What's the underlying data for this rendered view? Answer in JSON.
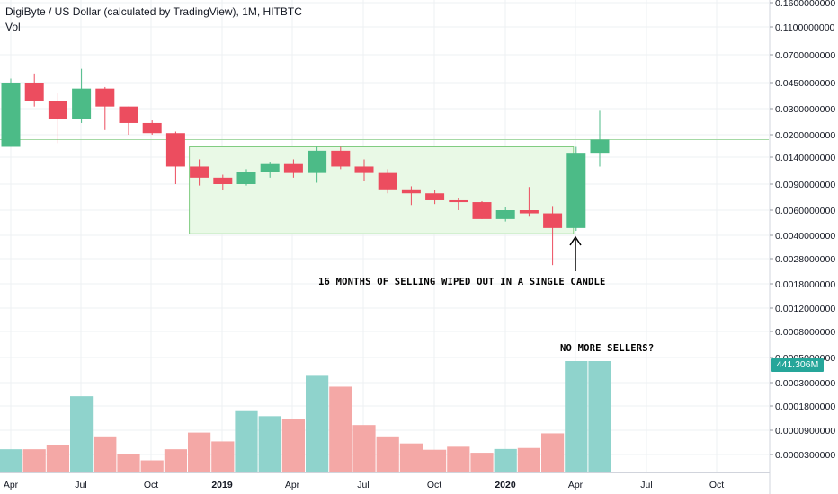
{
  "header": {
    "title": "DigiByte / US Dollar (calculated by TradingView), 1M, HITBTC",
    "volume_label": "Vol"
  },
  "annotations": {
    "main_text": "16 MONTHS OF SELLING WIPED OUT IN A SINGLE CANDLE",
    "volume_text": "NO MORE SELLERS?"
  },
  "volume_tag": "441.306M",
  "colors": {
    "up": "#4cbb87",
    "down": "#ec4d5f",
    "volume_up": "#8fd3cc",
    "volume_down": "#f4a8a6",
    "box_fill": "#e9f9e6",
    "box_stroke": "#7fcc7f",
    "level_line": "#a5d9a5",
    "grid": "#eef0f3",
    "axis_text": "#131722"
  },
  "chart_data": {
    "type": "candlestick",
    "timeframe": "1M",
    "price_axis_labels": [
      "0.1600000000",
      "0.1100000000",
      "0.0700000000",
      "0.0450000000",
      "0.0300000000",
      "0.0200000000",
      "0.0140000000",
      "0.0090000000",
      "0.0060000000",
      "0.0040000000",
      "0.0028000000",
      "0.0018000000",
      "0.0012000000",
      "0.0008000000",
      "0.0005000000",
      "0.0003000000",
      "0.0001800000",
      "0.0000900000",
      "0.0000300000"
    ],
    "time_axis_labels": [
      "Apr",
      "Jul",
      "Oct",
      "2019",
      "Apr",
      "Jul",
      "Oct",
      "2020",
      "Apr",
      "Jul",
      "Oct"
    ],
    "candles": [
      {
        "month": "2018-04",
        "open": 0.0165,
        "high": 0.048,
        "low": 0.0165,
        "close": 0.045
      },
      {
        "month": "2018-05",
        "open": 0.045,
        "high": 0.052,
        "low": 0.031,
        "close": 0.034
      },
      {
        "month": "2018-06",
        "open": 0.034,
        "high": 0.038,
        "low": 0.0175,
        "close": 0.0255
      },
      {
        "month": "2018-07",
        "open": 0.0255,
        "high": 0.056,
        "low": 0.024,
        "close": 0.041
      },
      {
        "month": "2018-08",
        "open": 0.041,
        "high": 0.042,
        "low": 0.0215,
        "close": 0.031
      },
      {
        "month": "2018-09",
        "open": 0.031,
        "high": 0.031,
        "low": 0.02,
        "close": 0.024
      },
      {
        "month": "2018-10",
        "open": 0.024,
        "high": 0.025,
        "low": 0.02,
        "close": 0.0205
      },
      {
        "month": "2018-11",
        "open": 0.0205,
        "high": 0.021,
        "low": 0.009,
        "close": 0.012
      },
      {
        "month": "2018-12",
        "open": 0.012,
        "high": 0.0135,
        "low": 0.0088,
        "close": 0.01
      },
      {
        "month": "2019-01",
        "open": 0.01,
        "high": 0.0105,
        "low": 0.0082,
        "close": 0.009
      },
      {
        "month": "2019-02",
        "open": 0.009,
        "high": 0.0115,
        "low": 0.0088,
        "close": 0.011
      },
      {
        "month": "2019-03",
        "open": 0.011,
        "high": 0.013,
        "low": 0.01,
        "close": 0.0125
      },
      {
        "month": "2019-04",
        "open": 0.0125,
        "high": 0.0135,
        "low": 0.01,
        "close": 0.0108
      },
      {
        "month": "2019-05",
        "open": 0.0108,
        "high": 0.0165,
        "low": 0.0092,
        "close": 0.0155
      },
      {
        "month": "2019-06",
        "open": 0.0155,
        "high": 0.0165,
        "low": 0.0115,
        "close": 0.012
      },
      {
        "month": "2019-07",
        "open": 0.012,
        "high": 0.0135,
        "low": 0.0095,
        "close": 0.0108
      },
      {
        "month": "2019-08",
        "open": 0.0108,
        "high": 0.0115,
        "low": 0.0078,
        "close": 0.0083
      },
      {
        "month": "2019-09",
        "open": 0.0083,
        "high": 0.0087,
        "low": 0.0065,
        "close": 0.0078
      },
      {
        "month": "2019-10",
        "open": 0.0078,
        "high": 0.0082,
        "low": 0.0066,
        "close": 0.007
      },
      {
        "month": "2019-11",
        "open": 0.007,
        "high": 0.0072,
        "low": 0.006,
        "close": 0.0068
      },
      {
        "month": "2019-12",
        "open": 0.0068,
        "high": 0.0069,
        "low": 0.0052,
        "close": 0.0052
      },
      {
        "month": "2020-01",
        "open": 0.0052,
        "high": 0.0063,
        "low": 0.005,
        "close": 0.006
      },
      {
        "month": "2020-02",
        "open": 0.006,
        "high": 0.0086,
        "low": 0.0054,
        "close": 0.0057
      },
      {
        "month": "2020-03",
        "open": 0.0057,
        "high": 0.0064,
        "low": 0.0025,
        "close": 0.0045
      },
      {
        "month": "2020-04",
        "open": 0.0045,
        "high": 0.0165,
        "low": 0.0043,
        "close": 0.015
      },
      {
        "month": "2020-05",
        "open": 0.015,
        "high": 0.029,
        "low": 0.012,
        "close": 0.0185
      }
    ],
    "volume_millions": [
      92,
      92,
      108,
      302,
      143,
      72,
      48,
      92,
      158,
      123,
      243,
      223,
      211,
      383,
      340,
      188,
      143,
      115,
      90,
      102,
      78,
      93,
      97,
      155,
      441.306,
      441.306
    ],
    "range_box": {
      "from": "2018-12",
      "to": "2020-04",
      "high": 0.0165,
      "low": 0.0041
    },
    "resistance_level": 0.0185
  }
}
